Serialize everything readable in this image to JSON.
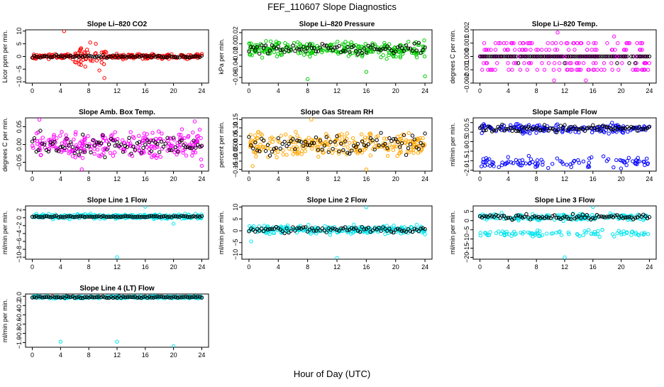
{
  "title": "FEF_110607  Slope Diagnostics",
  "xlabel": "Hour of Day (UTC)",
  "colors": {
    "red": "#ff0000",
    "green": "#00cc00",
    "magenta": "#ff00ff",
    "orange": "#ffa500",
    "blue": "#0000ff",
    "cyan": "#00e5ee",
    "black": "#000000"
  },
  "chart_data": [
    {
      "type": "scatter",
      "title": "Slope Li–820 CO2",
      "ylabel": "Licor ppm per min.",
      "xlim": [
        0,
        24
      ],
      "xticks": [
        0,
        4,
        8,
        12,
        16,
        20,
        24
      ],
      "ylim": [
        -10.5,
        10.5
      ],
      "yticks": [
        -10,
        -5,
        0,
        5,
        10
      ],
      "yticklabels": [
        "−10",
        "−5",
        "0",
        "5",
        "10"
      ],
      "color_key": "red",
      "dist": "spread",
      "base": 0,
      "noise": 0.8,
      "black_noise": 0.4,
      "outliers": [
        [
          4.5,
          10
        ],
        [
          8.2,
          5.5
        ],
        [
          9.0,
          5.0
        ],
        [
          10.2,
          -8.5
        ],
        [
          9.5,
          -5.5
        ],
        [
          7.5,
          -4.0
        ],
        [
          24.0,
          1.0
        ]
      ]
    },
    {
      "type": "scatter",
      "title": "Slope Li–820 Pressure",
      "ylabel": "kPa per min.",
      "xlim": [
        0,
        24
      ],
      "xticks": [
        0,
        4,
        8,
        12,
        16,
        20,
        24
      ],
      "ylim": [
        -0.07,
        0.025
      ],
      "yticks": [
        -0.06,
        -0.04,
        -0.02,
        0.0,
        0.02
      ],
      "yticklabels": [
        "−0.06",
        "−0.04",
        "−0.02",
        "0.00",
        "0.02"
      ],
      "color_key": "green",
      "dist": "band",
      "base": -0.01,
      "noise": 0.012,
      "black_noise": 0.008,
      "outliers": [
        [
          8.0,
          -0.063
        ],
        [
          16.0,
          -0.05
        ],
        [
          24.0,
          -0.058
        ]
      ]
    },
    {
      "type": "scatter",
      "title": "Slope Li–820 Temp.",
      "ylabel": "degrees C per min.",
      "xlim": [
        0,
        24
      ],
      "xticks": [
        0,
        4,
        8,
        12,
        16,
        20,
        24
      ],
      "ylim": [
        -0.002,
        0.002
      ],
      "yticks": [
        -0.002,
        -0.001,
        0.0,
        0.001,
        0.002
      ],
      "yticklabels": [
        "−0.002",
        "−0.001",
        "0.000",
        "0.001",
        "0.002"
      ],
      "color_key": "magenta",
      "dist": "quantized",
      "base": 0,
      "step": 0.0005,
      "noise": 0.0005,
      "outliers": [
        [
          11.0,
          0.0018
        ],
        [
          10.5,
          -0.0018
        ],
        [
          15.0,
          -0.0018
        ],
        [
          19.0,
          0.0015
        ]
      ]
    },
    {
      "type": "scatter",
      "title": "Slope Amb. Box Temp.",
      "ylabel": "degrees C per min.",
      "xlim": [
        0,
        24
      ],
      "xticks": [
        0,
        4,
        8,
        12,
        16,
        20,
        24
      ],
      "ylim": [
        -0.075,
        0.075
      ],
      "yticks": [
        -0.05,
        0.0,
        0.05
      ],
      "yticklabels": [
        "−0.05",
        "0.00",
        "0.05"
      ],
      "color_key": "magenta",
      "dist": "cloud",
      "base": 0,
      "noise": 0.03,
      "black_noise": 0.025,
      "outliers": [
        [
          1.0,
          0.07
        ],
        [
          7.0,
          -0.07
        ],
        [
          23.0,
          0.065
        ],
        [
          24.0,
          -0.06
        ]
      ]
    },
    {
      "type": "scatter",
      "title": "Slope Gas Stream RH",
      "ylabel": "percent per min.",
      "xlim": [
        0,
        24
      ],
      "xticks": [
        0,
        4,
        8,
        12,
        16,
        20,
        24
      ],
      "ylim": [
        -0.16,
        0.16
      ],
      "yticks": [
        -0.15,
        -0.1,
        -0.05,
        0.0,
        0.05,
        0.1,
        0.15
      ],
      "yticklabels": [
        "−0.15",
        "−0.10",
        "−0.05",
        "0.00",
        "0.05",
        "0.10",
        "0.15"
      ],
      "color_key": "orange",
      "dist": "cloud",
      "base": 0,
      "noise": 0.06,
      "black_noise": 0.05,
      "outliers": [
        [
          8.5,
          0.15
        ],
        [
          16.0,
          -0.15
        ],
        [
          0.5,
          -0.13
        ]
      ]
    },
    {
      "type": "scatter",
      "title": "Slope Sample Flow",
      "ylabel": "ml/min per min.",
      "xlim": [
        0,
        24
      ],
      "xticks": [
        0,
        4,
        8,
        12,
        16,
        20,
        24
      ],
      "ylim": [
        -2.05,
        0.75
      ],
      "yticks": [
        -2.0,
        -1.5,
        -1.0,
        -0.5,
        0.0,
        0.5
      ],
      "yticklabels": [
        "−2.0",
        "−1.5",
        "−1.0",
        "−0.5",
        "0.0",
        "0.5"
      ],
      "color_key": "blue",
      "dist": "twoband",
      "base": 0.2,
      "noise": 0.2,
      "base2": -1.6,
      "noise2": 0.25,
      "black_noise": 0.15,
      "outliers": []
    },
    {
      "type": "scatter",
      "title": "Slope Line 1 Flow",
      "ylabel": "ml/min per min.",
      "xlim": [
        0,
        24
      ],
      "xticks": [
        0,
        4,
        8,
        12,
        16,
        20,
        24
      ],
      "ylim": [
        -10.5,
        3
      ],
      "yticks": [
        -10,
        -8,
        -6,
        -4,
        -2,
        0,
        2
      ],
      "yticklabels": [
        "−10",
        "−8",
        "−6",
        "−4",
        "−2",
        "0",
        "2"
      ],
      "color_key": "cyan",
      "dist": "band",
      "base": 0.3,
      "noise": 0.5,
      "black_noise": 0.15,
      "outliers": [
        [
          12.0,
          -10
        ],
        [
          16.0,
          2.8
        ],
        [
          20.0,
          -1.5
        ]
      ]
    },
    {
      "type": "scatter",
      "title": "Slope Line 2 Flow",
      "ylabel": "ml/min per min.",
      "xlim": [
        0,
        24
      ],
      "xticks": [
        0,
        4,
        8,
        12,
        16,
        20,
        24
      ],
      "ylim": [
        -12,
        10.5
      ],
      "yticks": [
        -10,
        -5,
        0,
        5,
        10
      ],
      "yticklabels": [
        "−10",
        "−5",
        "0",
        "5",
        "10"
      ],
      "color_key": "cyan",
      "dist": "band",
      "base": 0.5,
      "noise": 1.5,
      "black_noise": 1.2,
      "outliers": [
        [
          0.3,
          -4.5
        ],
        [
          12.0,
          -11.5
        ],
        [
          16.0,
          10
        ],
        [
          24.0,
          -1.5
        ]
      ]
    },
    {
      "type": "scatter",
      "title": "Slope Line 3 Flow",
      "ylabel": "ml/min per min.",
      "xlim": [
        0,
        24
      ],
      "xticks": [
        0,
        4,
        8,
        12,
        16,
        20,
        24
      ],
      "ylim": [
        -21,
        8
      ],
      "yticks": [
        -20,
        -15,
        -10,
        -5,
        0,
        5
      ],
      "yticklabels": [
        "−20",
        "−15",
        "−10",
        "−5",
        "0",
        "5"
      ],
      "color_key": "cyan",
      "dist": "twoband",
      "base": 2,
      "noise": 1.5,
      "base2": -7,
      "noise2": 1.5,
      "black_noise": 1.2,
      "outliers": [
        [
          12.0,
          -20
        ],
        [
          16.0,
          7.5
        ]
      ]
    },
    {
      "type": "scatter",
      "title": "Slope Line 4 (LT) Flow",
      "ylabel": "ml/min per min.",
      "xlim": [
        0,
        24
      ],
      "xticks": [
        0,
        4,
        8,
        12,
        16,
        20,
        24
      ],
      "ylim": [
        -1.1,
        0.05
      ],
      "yticks": [
        -1.0,
        -0.8,
        -0.6,
        -0.4,
        -0.2,
        0.0
      ],
      "yticklabels": [
        "−1.0",
        "−0.8",
        "−0.6",
        "−0.4",
        "−0.2",
        "0.0"
      ],
      "color_key": "cyan",
      "dist": "band",
      "base": -0.02,
      "noise": 0.02,
      "black_noise": 0.015,
      "outliers": [
        [
          4.0,
          -0.98
        ],
        [
          12.0,
          -0.98
        ],
        [
          20.0,
          -1.08
        ]
      ]
    }
  ]
}
